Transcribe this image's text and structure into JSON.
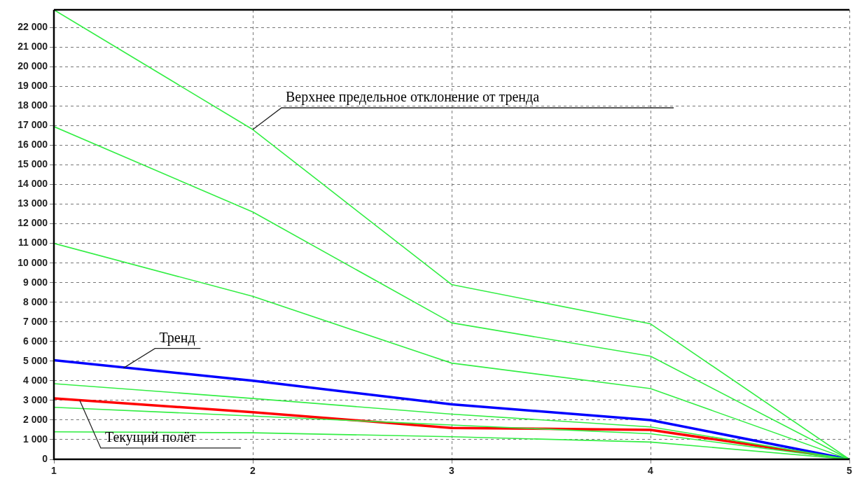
{
  "chart_data": {
    "type": "line",
    "x": [
      1,
      2,
      3,
      4,
      5
    ],
    "series": [
      {
        "color": "#33ee44",
        "values": [
          22900,
          16800,
          8900,
          6900,
          0
        ]
      },
      {
        "color": "#33ee44",
        "values": [
          16950,
          12600,
          6950,
          5250,
          0
        ]
      },
      {
        "color": "#33ee44",
        "values": [
          11000,
          8300,
          4900,
          3600,
          0
        ]
      },
      {
        "color": "#33ee44",
        "values": [
          3850,
          3100,
          2300,
          1650,
          0
        ]
      },
      {
        "color": "#33ee44",
        "values": [
          2650,
          2200,
          1750,
          1300,
          0
        ]
      },
      {
        "color": "#33ee44",
        "values": [
          1400,
          1350,
          1150,
          880,
          0
        ]
      },
      {
        "color": "#0000ff",
        "values": [
          5050,
          4000,
          2800,
          2000,
          0
        ]
      },
      {
        "color": "#ff0000",
        "values": [
          3100,
          2400,
          1600,
          1500,
          0
        ]
      }
    ],
    "xlim": [
      1,
      5
    ],
    "xticks": [
      1,
      2,
      3,
      4,
      5
    ],
    "ylim": [
      0,
      22900
    ],
    "yticks": [
      {
        "value": 0,
        "label": "0"
      },
      {
        "value": 1000,
        "label": "1 000"
      },
      {
        "value": 2000,
        "label": "2 000"
      },
      {
        "value": 3000,
        "label": "3 000"
      },
      {
        "value": 4000,
        "label": "4 000"
      },
      {
        "value": 5000,
        "label": "5 000"
      },
      {
        "value": 6000,
        "label": "6 000"
      },
      {
        "value": 7000,
        "label": "7 000"
      },
      {
        "value": 8000,
        "label": "8 000"
      },
      {
        "value": 9000,
        "label": "9 000"
      },
      {
        "value": 10000,
        "label": "10 000"
      },
      {
        "value": 11000,
        "label": "11 000"
      },
      {
        "value": 12000,
        "label": "12 000"
      },
      {
        "value": 13000,
        "label": "13 000"
      },
      {
        "value": 14000,
        "label": "14 000"
      },
      {
        "value": 15000,
        "label": "15 000"
      },
      {
        "value": 16000,
        "label": "16 000"
      },
      {
        "value": 17000,
        "label": "17 000"
      },
      {
        "value": 18000,
        "label": "18 000"
      },
      {
        "value": 19000,
        "label": "19 000"
      },
      {
        "value": 20000,
        "label": "20 000"
      },
      {
        "value": 21000,
        "label": "21 000"
      },
      {
        "value": 22000,
        "label": "22 000"
      }
    ],
    "grid": true,
    "legend": false,
    "marker": "none",
    "line_style": "solid",
    "annotations": [
      {
        "text": "Верхнее предельное отклонение от тренда",
        "x": 2,
        "y": 16800
      },
      {
        "text": "Тренд",
        "x": 1.35,
        "y": 4650
      },
      {
        "text": "Текущий полёт",
        "x": 1.13,
        "y": 3000
      }
    ]
  }
}
